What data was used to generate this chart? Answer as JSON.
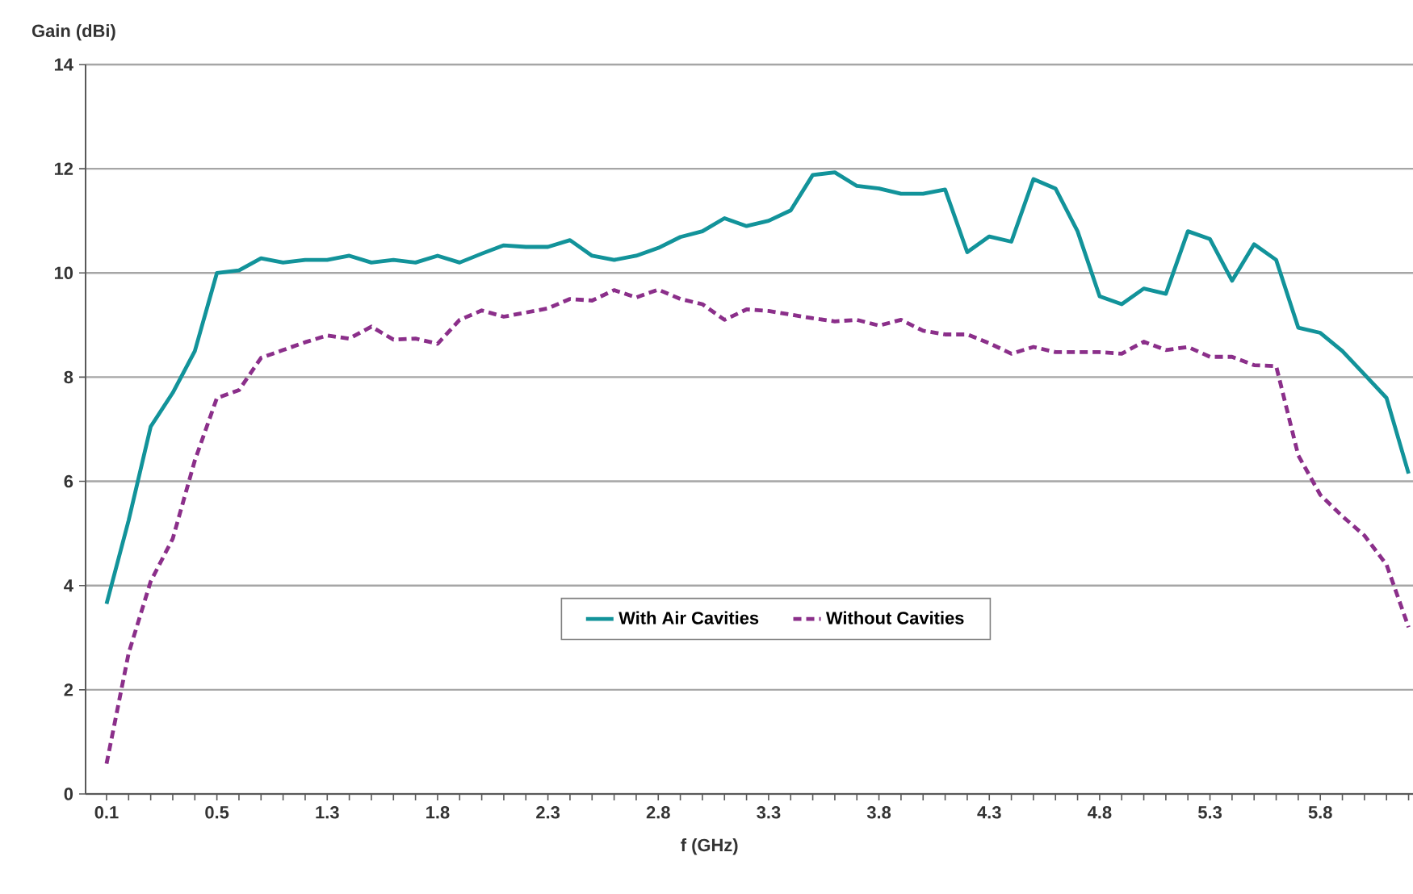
{
  "chart_data": {
    "type": "line",
    "xlabel": "f (GHz)",
    "ylabel": "Gain (dBi)",
    "categories": [
      "0.1",
      null,
      null,
      null,
      null,
      "0.5",
      null,
      null,
      null,
      null,
      "1.3",
      null,
      null,
      null,
      null,
      "1.8",
      null,
      null,
      null,
      null,
      "2.3",
      null,
      null,
      null,
      null,
      "2.8",
      null,
      null,
      null,
      null,
      "3.3",
      null,
      null,
      null,
      null,
      "3.8",
      null,
      null,
      null,
      null,
      "4.3",
      null,
      null,
      null,
      null,
      "4.8",
      null,
      null,
      null,
      null,
      "5.3",
      null,
      null,
      null,
      null,
      "5.8",
      null,
      null,
      null,
      null
    ],
    "series": [
      {
        "name": "With Air Cavities",
        "color": "#12939a",
        "line_style": "solid",
        "values": [
          3.65,
          5.25,
          7.05,
          7.7,
          8.5,
          10.0,
          10.05,
          10.28,
          10.2,
          10.25,
          10.25,
          10.33,
          10.2,
          10.25,
          10.2,
          10.33,
          10.2,
          10.37,
          10.53,
          10.5,
          10.5,
          10.63,
          10.33,
          10.25,
          10.33,
          10.48,
          10.69,
          10.8,
          11.05,
          10.9,
          11.0,
          11.2,
          11.88,
          11.93,
          11.67,
          11.62,
          11.52,
          11.52,
          11.6,
          10.4,
          10.7,
          10.6,
          11.8,
          11.62,
          10.8,
          9.55,
          9.4,
          9.7,
          9.6,
          10.8,
          10.65,
          9.85,
          10.55,
          10.25,
          8.95,
          8.85,
          8.5,
          8.05,
          7.6,
          6.15
        ]
      },
      {
        "name": "Without Cavities",
        "color": "#8b2f8a",
        "line_style": "dashed",
        "values": [
          0.58,
          2.7,
          4.08,
          4.9,
          6.4,
          7.6,
          7.75,
          8.37,
          8.52,
          8.67,
          8.8,
          8.74,
          8.97,
          8.72,
          8.74,
          8.64,
          9.1,
          9.28,
          9.16,
          9.24,
          9.32,
          9.5,
          9.47,
          9.67,
          9.53,
          9.68,
          9.5,
          9.4,
          9.1,
          9.3,
          9.27,
          9.2,
          9.13,
          9.07,
          9.1,
          8.99,
          9.1,
          8.89,
          8.82,
          8.82,
          8.65,
          8.45,
          8.58,
          8.48,
          8.48,
          8.48,
          8.45,
          8.68,
          8.52,
          8.58,
          8.39,
          8.39,
          8.23,
          8.21,
          6.5,
          5.74,
          5.33,
          4.96,
          4.4,
          3.2
        ]
      }
    ],
    "ylim": [
      0,
      14
    ],
    "yticks": [
      0,
      2,
      4,
      6,
      8,
      10,
      12,
      14
    ],
    "grid": "y",
    "legend": "bottom",
    "marker": "none"
  }
}
